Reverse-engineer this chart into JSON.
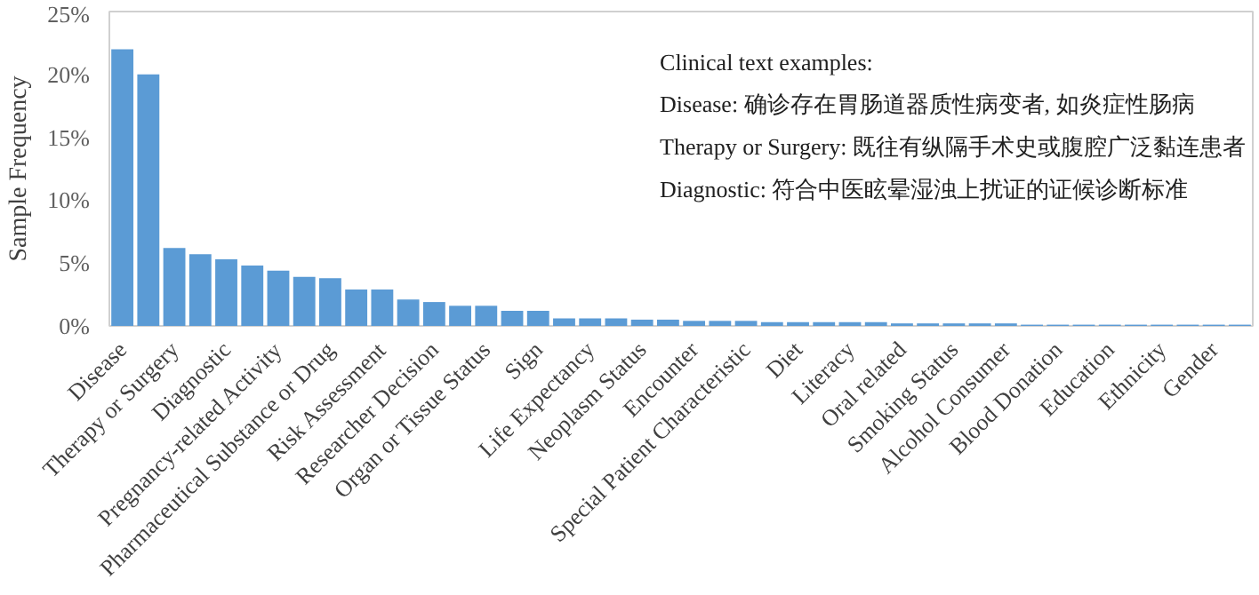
{
  "chart_data": {
    "type": "bar",
    "ylabel": "Sample Frequency",
    "categories": [
      "Disease",
      null,
      "Therapy or Surgery",
      null,
      "Diagnostic",
      null,
      "Pregnancy-related Activity",
      null,
      "Pharmaceutical Substance or Drug",
      null,
      "Risk Assessment",
      null,
      "Researcher Decision",
      null,
      "Organ or Tissue Status",
      null,
      "Sign",
      null,
      "Life Expectancy",
      null,
      "Neoplasm Status",
      null,
      "Encounter",
      null,
      "Special Patient Characteristic",
      null,
      "Diet",
      null,
      "Literacy",
      null,
      "Oral related",
      null,
      "Smoking Status",
      null,
      "Alcohol Consumer",
      null,
      "Blood Donation",
      null,
      "Education",
      null,
      "Ethnicity",
      null,
      "Gender",
      null
    ],
    "values": [
      22,
      20,
      6.2,
      5.7,
      5.3,
      4.8,
      4.4,
      3.9,
      3.8,
      2.9,
      2.9,
      2.1,
      1.9,
      1.6,
      1.6,
      1.2,
      1.2,
      0.6,
      0.6,
      0.6,
      0.5,
      0.5,
      0.4,
      0.4,
      0.4,
      0.3,
      0.3,
      0.3,
      0.3,
      0.3,
      0.2,
      0.2,
      0.2,
      0.2,
      0.2,
      0.1,
      0.1,
      0.1,
      0.1,
      0.1,
      0.1,
      0.1,
      0.1,
      0.1
    ],
    "color": "#5b9bd5",
    "ylim": [
      0,
      25
    ],
    "yticks": [
      {
        "value": 0,
        "label": "0%"
      },
      {
        "value": 5,
        "label": "5%"
      },
      {
        "value": 10,
        "label": "10%"
      },
      {
        "value": 15,
        "label": "15%"
      },
      {
        "value": 20,
        "label": "20%"
      },
      {
        "value": 25,
        "label": "25%"
      }
    ],
    "grid": false,
    "annotations": [
      "Clinical text examples:",
      "Disease: 确诊存在胃肠道器质性病变者, 如炎症性肠病",
      "Therapy or Surgery: 既往有纵隔手术史或腹腔广泛黏连患者",
      "Diagnostic: 符合中医眩晕湿浊上扰证的证候诊断标准"
    ]
  }
}
